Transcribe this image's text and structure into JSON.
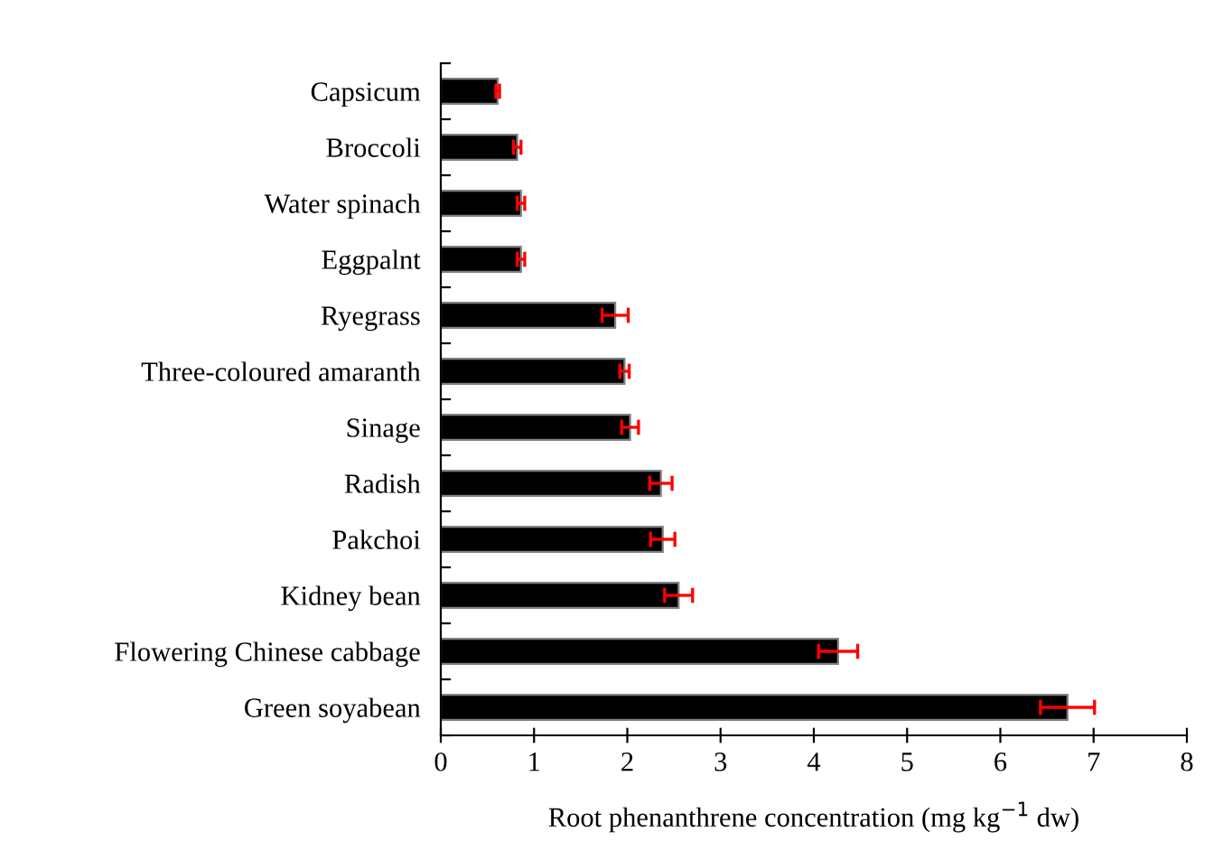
{
  "chart_data": {
    "type": "bar",
    "orientation": "horizontal",
    "xlabel": "Root phenanthrene concentration (mg kg$^{−1}$ dw)",
    "categories": [
      "Capsicum",
      "Broccoli",
      "Water spinach",
      "Eggpalnt",
      "Ryegrass",
      "Three-coloured amaranth",
      "Sinage",
      "Radish",
      "Pakchoi",
      "Kidney bean",
      "Flowering Chinese cabbage",
      "Green soyabean"
    ],
    "values": [
      0.61,
      0.82,
      0.86,
      0.86,
      1.87,
      1.97,
      2.03,
      2.36,
      2.38,
      2.55,
      4.26,
      6.72
    ],
    "errors": [
      0.02,
      0.04,
      0.04,
      0.04,
      0.14,
      0.05,
      0.09,
      0.12,
      0.13,
      0.15,
      0.21,
      0.29
    ],
    "color": "#000000",
    "xlim": [
      0,
      8
    ],
    "xticks": [
      0,
      1,
      2,
      3,
      4,
      5,
      6,
      7,
      8
    ],
    "grid": false,
    "legend": false
  }
}
